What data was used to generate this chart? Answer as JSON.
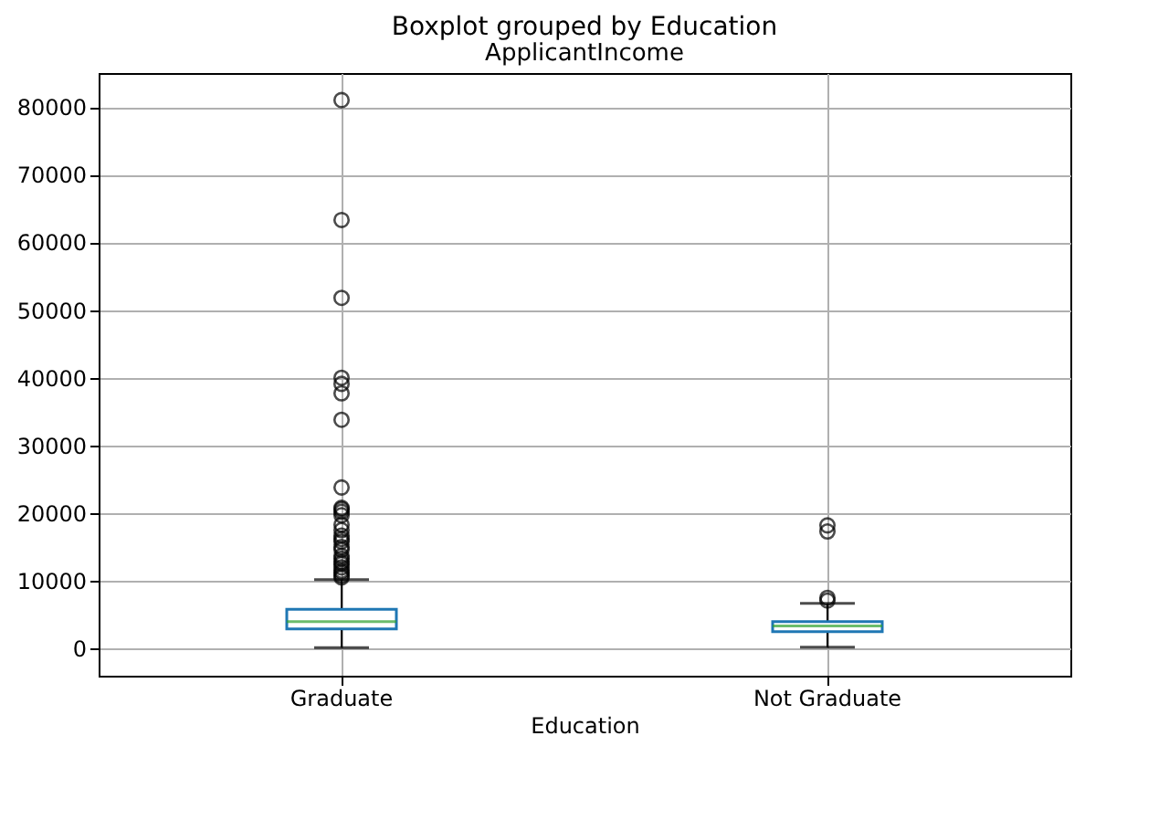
{
  "chart_data": {
    "type": "box",
    "title": "Boxplot grouped by Education",
    "subtitle": "ApplicantIncome",
    "xlabel": "Education",
    "categories": [
      "Graduate",
      "Not Graduate"
    ],
    "series": [
      {
        "color": "#1f77b4",
        "boxes": [
          {
            "low": 150,
            "q1": 2900,
            "median": 4000,
            "q3": 5800,
            "high": 10200,
            "outliers": [
              81000,
              63300,
              51800,
              40000,
              39100,
              37700,
              33800,
              23800,
              20800,
              20600,
              20200,
              19700,
              18300,
              17500,
              16700,
              16200,
              15800,
              15000,
              14600,
              13700,
              13300,
              12800,
              12500,
              12000,
              11500,
              11200,
              10800,
              10500
            ]
          },
          {
            "low": 200,
            "q1": 2500,
            "median": 3350,
            "q3": 4000,
            "high": 6700,
            "outliers": [
              18200,
              17300,
              7500,
              7100
            ]
          }
        ]
      }
    ],
    "ylim": [
      -4000,
      85000
    ],
    "yticks": [
      0,
      10000,
      20000,
      30000,
      40000,
      50000,
      60000,
      70000,
      80000
    ],
    "grid": true
  }
}
